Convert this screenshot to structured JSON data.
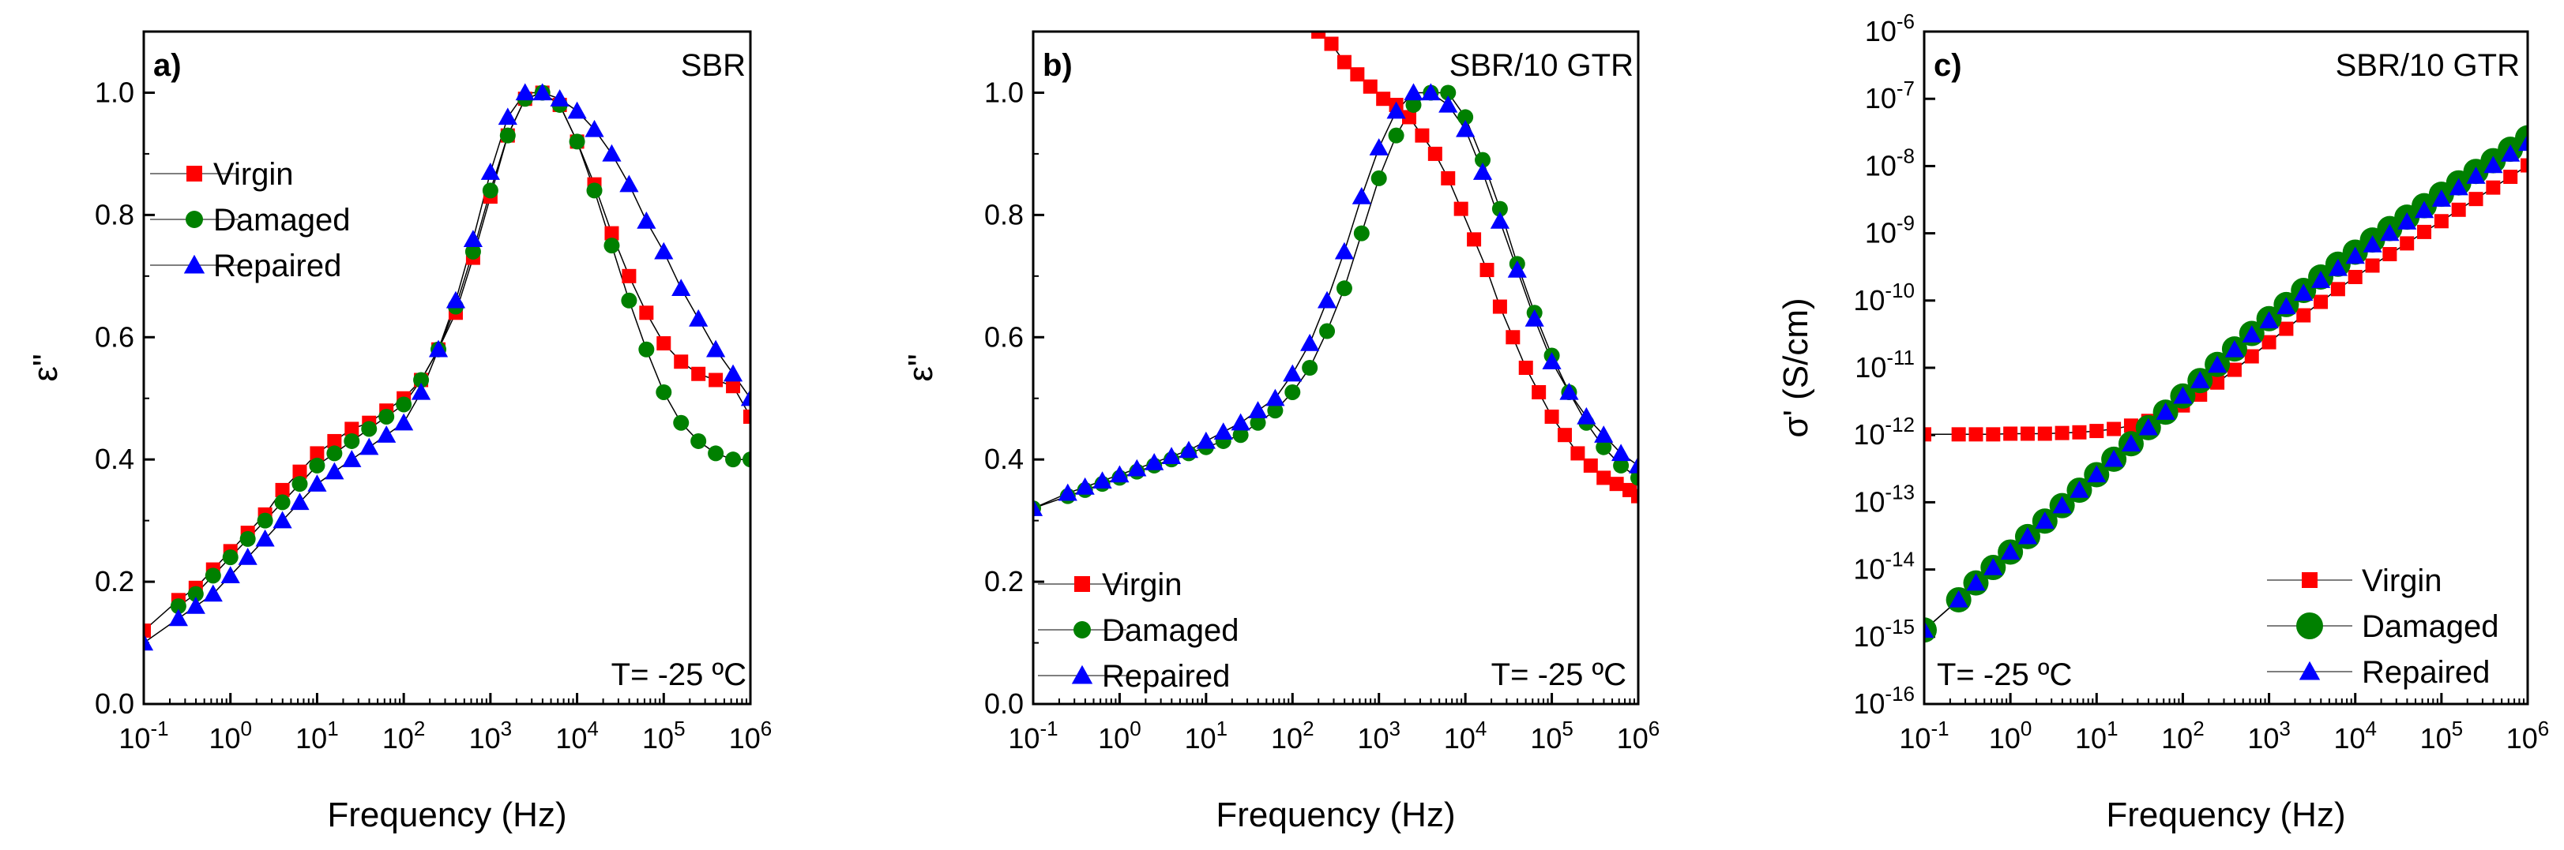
{
  "colors": {
    "virgin": "#ff0000",
    "damaged": "#008000",
    "repaired": "#0000ff",
    "line": "#000000"
  },
  "chart_data": [
    {
      "type": "scatter",
      "panel_label": "a)",
      "sample": "SBR",
      "annotation": "T= -25 ºC",
      "xlabel": "Frequency (Hz)",
      "ylabel": "ε\"",
      "xscale": "log",
      "xlim": [
        0.1,
        1000000
      ],
      "ylim": [
        0.0,
        1.1
      ],
      "xticks": [
        {
          "base": "10",
          "exp": "-1"
        },
        {
          "base": "10",
          "exp": "0"
        },
        {
          "base": "10",
          "exp": "1"
        },
        {
          "base": "10",
          "exp": "2"
        },
        {
          "base": "10",
          "exp": "3"
        },
        {
          "base": "10",
          "exp": "4"
        },
        {
          "base": "10",
          "exp": "5"
        },
        {
          "base": "10",
          "exp": "6"
        }
      ],
      "yticks": [
        "0.0",
        "0.2",
        "0.4",
        "0.6",
        "0.8",
        "1.0"
      ],
      "legend": [
        "Virgin",
        "Damaged",
        "Repaired"
      ],
      "series": [
        {
          "name": "Virgin",
          "logx": [
            -1.0,
            -0.6,
            -0.4,
            -0.2,
            0.0,
            0.2,
            0.4,
            0.6,
            0.8,
            1.0,
            1.2,
            1.4,
            1.6,
            1.8,
            2.0,
            2.2,
            2.4,
            2.6,
            2.8,
            3.0,
            3.2,
            3.4,
            3.6,
            3.8,
            4.0,
            4.2,
            4.4,
            4.6,
            4.8,
            5.0,
            5.2,
            5.4,
            5.6,
            5.8,
            6.0
          ],
          "y": [
            0.12,
            0.17,
            0.19,
            0.22,
            0.25,
            0.28,
            0.31,
            0.35,
            0.38,
            0.41,
            0.43,
            0.45,
            0.46,
            0.48,
            0.5,
            0.53,
            0.58,
            0.64,
            0.73,
            0.83,
            0.93,
            0.99,
            1.0,
            0.98,
            0.92,
            0.85,
            0.77,
            0.7,
            0.64,
            0.59,
            0.56,
            0.54,
            0.53,
            0.52,
            0.47
          ]
        },
        {
          "name": "Damaged",
          "logx": [
            -0.6,
            -0.4,
            -0.2,
            0.0,
            0.2,
            0.4,
            0.6,
            0.8,
            1.0,
            1.2,
            1.4,
            1.6,
            1.8,
            2.0,
            2.2,
            2.4,
            2.6,
            2.8,
            3.0,
            3.2,
            3.4,
            3.6,
            3.8,
            4.0,
            4.2,
            4.4,
            4.6,
            4.8,
            5.0,
            5.2,
            5.4,
            5.6,
            5.8,
            6.0
          ],
          "y": [
            0.16,
            0.18,
            0.21,
            0.24,
            0.27,
            0.3,
            0.33,
            0.36,
            0.39,
            0.41,
            0.43,
            0.45,
            0.47,
            0.49,
            0.53,
            0.58,
            0.65,
            0.74,
            0.84,
            0.93,
            0.99,
            1.0,
            0.98,
            0.92,
            0.84,
            0.75,
            0.66,
            0.58,
            0.51,
            0.46,
            0.43,
            0.41,
            0.4,
            0.4
          ]
        },
        {
          "name": "Repaired",
          "logx": [
            -1.0,
            -0.6,
            -0.4,
            -0.2,
            0.0,
            0.2,
            0.4,
            0.6,
            0.8,
            1.0,
            1.2,
            1.4,
            1.6,
            1.8,
            2.0,
            2.2,
            2.4,
            2.6,
            2.8,
            3.0,
            3.2,
            3.4,
            3.6,
            3.8,
            4.0,
            4.2,
            4.4,
            4.6,
            4.8,
            5.0,
            5.2,
            5.4,
            5.6,
            5.8,
            6.0
          ],
          "y": [
            0.1,
            0.14,
            0.16,
            0.18,
            0.21,
            0.24,
            0.27,
            0.3,
            0.33,
            0.36,
            0.38,
            0.4,
            0.42,
            0.44,
            0.46,
            0.51,
            0.58,
            0.66,
            0.76,
            0.87,
            0.96,
            1.0,
            1.0,
            0.99,
            0.97,
            0.94,
            0.9,
            0.85,
            0.79,
            0.74,
            0.68,
            0.63,
            0.58,
            0.54,
            0.5
          ]
        }
      ]
    },
    {
      "type": "scatter",
      "panel_label": "b)",
      "sample": "SBR/10 GTR",
      "annotation": "T= -25 ºC",
      "xlabel": "Frequency (Hz)",
      "ylabel": "ε\"",
      "xscale": "log",
      "xlim": [
        0.1,
        1000000
      ],
      "ylim": [
        0.0,
        1.1
      ],
      "xticks": [
        {
          "base": "10",
          "exp": "-1"
        },
        {
          "base": "10",
          "exp": "0"
        },
        {
          "base": "10",
          "exp": "1"
        },
        {
          "base": "10",
          "exp": "2"
        },
        {
          "base": "10",
          "exp": "3"
        },
        {
          "base": "10",
          "exp": "4"
        },
        {
          "base": "10",
          "exp": "5"
        },
        {
          "base": "10",
          "exp": "6"
        }
      ],
      "yticks": [
        "0.0",
        "0.2",
        "0.4",
        "0.6",
        "0.8",
        "1.0"
      ],
      "legend": [
        "Virgin",
        "Damaged",
        "Repaired"
      ],
      "series": [
        {
          "name": "Virgin",
          "logx": [
            2.3,
            2.45,
            2.6,
            2.75,
            2.9,
            3.05,
            3.2,
            3.35,
            3.5,
            3.65,
            3.8,
            3.95,
            4.1,
            4.25,
            4.4,
            4.55,
            4.7,
            4.85,
            5.0,
            5.15,
            5.3,
            5.45,
            5.6,
            5.75,
            5.9,
            6.0
          ],
          "y": [
            1.1,
            1.08,
            1.05,
            1.03,
            1.01,
            0.99,
            0.98,
            0.96,
            0.93,
            0.9,
            0.86,
            0.81,
            0.76,
            0.71,
            0.65,
            0.6,
            0.55,
            0.51,
            0.47,
            0.44,
            0.41,
            0.39,
            0.37,
            0.36,
            0.35,
            0.34
          ]
        },
        {
          "name": "Damaged",
          "logx": [
            -1.0,
            -0.6,
            -0.4,
            -0.2,
            0.0,
            0.2,
            0.4,
            0.6,
            0.8,
            1.0,
            1.2,
            1.4,
            1.6,
            1.8,
            2.0,
            2.2,
            2.4,
            2.6,
            2.8,
            3.0,
            3.2,
            3.4,
            3.6,
            3.8,
            4.0,
            4.2,
            4.4,
            4.6,
            4.8,
            5.0,
            5.2,
            5.4,
            5.6,
            5.8,
            6.0
          ],
          "y": [
            0.32,
            0.34,
            0.35,
            0.36,
            0.37,
            0.38,
            0.39,
            0.4,
            0.41,
            0.42,
            0.43,
            0.44,
            0.46,
            0.48,
            0.51,
            0.55,
            0.61,
            0.68,
            0.77,
            0.86,
            0.93,
            0.98,
            1.0,
            1.0,
            0.96,
            0.89,
            0.81,
            0.72,
            0.64,
            0.57,
            0.51,
            0.46,
            0.42,
            0.39,
            0.37
          ]
        },
        {
          "name": "Repaired",
          "logx": [
            -1.0,
            -0.6,
            -0.4,
            -0.2,
            0.0,
            0.2,
            0.4,
            0.6,
            0.8,
            1.0,
            1.2,
            1.4,
            1.6,
            1.8,
            2.0,
            2.2,
            2.4,
            2.6,
            2.8,
            3.0,
            3.2,
            3.4,
            3.6,
            3.8,
            4.0,
            4.2,
            4.4,
            4.6,
            4.8,
            5.0,
            5.2,
            5.4,
            5.6,
            5.8,
            6.0
          ],
          "y": [
            0.32,
            0.345,
            0.355,
            0.365,
            0.375,
            0.385,
            0.395,
            0.405,
            0.415,
            0.43,
            0.445,
            0.46,
            0.48,
            0.5,
            0.54,
            0.59,
            0.66,
            0.74,
            0.83,
            0.91,
            0.97,
            1.0,
            1.0,
            0.98,
            0.94,
            0.87,
            0.79,
            0.71,
            0.63,
            0.56,
            0.51,
            0.47,
            0.44,
            0.41,
            0.39
          ]
        }
      ]
    },
    {
      "type": "scatter",
      "panel_label": "c)",
      "sample": "SBR/10 GTR",
      "annotation": "T= -25 ºC",
      "xlabel": "Frequency (Hz)",
      "ylabel": "σ' (S/cm)",
      "xscale": "log",
      "yscale": "log",
      "xlim": [
        0.1,
        1000000
      ],
      "ylim": [
        1e-16,
        1e-06
      ],
      "xticks": [
        {
          "base": "10",
          "exp": "-1"
        },
        {
          "base": "10",
          "exp": "0"
        },
        {
          "base": "10",
          "exp": "1"
        },
        {
          "base": "10",
          "exp": "2"
        },
        {
          "base": "10",
          "exp": "3"
        },
        {
          "base": "10",
          "exp": "4"
        },
        {
          "base": "10",
          "exp": "5"
        },
        {
          "base": "10",
          "exp": "6"
        }
      ],
      "yticks": [
        {
          "base": "10",
          "exp": "-16"
        },
        {
          "base": "10",
          "exp": "-15"
        },
        {
          "base": "10",
          "exp": "-14"
        },
        {
          "base": "10",
          "exp": "-13"
        },
        {
          "base": "10",
          "exp": "-12"
        },
        {
          "base": "10",
          "exp": "-11"
        },
        {
          "base": "10",
          "exp": "-10"
        },
        {
          "base": "10",
          "exp": "-9"
        },
        {
          "base": "10",
          "exp": "-8"
        },
        {
          "base": "10",
          "exp": "-7"
        },
        {
          "base": "10",
          "exp": "-6"
        }
      ],
      "legend": [
        "Virgin",
        "Damaged",
        "Repaired"
      ],
      "series": [
        {
          "name": "Virgin",
          "logx": [
            -1.0,
            -0.6,
            -0.4,
            -0.2,
            0.0,
            0.2,
            0.4,
            0.6,
            0.8,
            1.0,
            1.2,
            1.4,
            1.6,
            1.8,
            2.0,
            2.2,
            2.4,
            2.6,
            2.8,
            3.0,
            3.2,
            3.4,
            3.6,
            3.8,
            4.0,
            4.2,
            4.4,
            4.6,
            4.8,
            5.0,
            5.2,
            5.4,
            5.6,
            5.8,
            6.0
          ],
          "logy": [
            -11.99,
            -11.99,
            -11.99,
            -11.99,
            -11.98,
            -11.98,
            -11.98,
            -11.97,
            -11.96,
            -11.94,
            -11.91,
            -11.86,
            -11.79,
            -11.69,
            -11.56,
            -11.4,
            -11.22,
            -11.03,
            -10.83,
            -10.62,
            -10.42,
            -10.22,
            -10.02,
            -9.83,
            -9.65,
            -9.48,
            -9.31,
            -9.15,
            -8.98,
            -8.82,
            -8.65,
            -8.49,
            -8.32,
            -8.16,
            -7.99
          ]
        },
        {
          "name": "Damaged",
          "logx": [
            -1.0,
            -0.6,
            -0.4,
            -0.2,
            0.0,
            0.2,
            0.4,
            0.6,
            0.8,
            1.0,
            1.2,
            1.4,
            1.6,
            1.8,
            2.0,
            2.2,
            2.4,
            2.6,
            2.8,
            3.0,
            3.2,
            3.4,
            3.6,
            3.8,
            4.0,
            4.2,
            4.4,
            4.6,
            4.8,
            5.0,
            5.2,
            5.4,
            5.6,
            5.8,
            6.0
          ],
          "logy": [
            -14.9,
            -14.45,
            -14.2,
            -13.97,
            -13.74,
            -13.51,
            -13.28,
            -13.05,
            -12.82,
            -12.59,
            -12.36,
            -12.13,
            -11.89,
            -11.66,
            -11.42,
            -11.19,
            -10.95,
            -10.72,
            -10.49,
            -10.27,
            -10.06,
            -9.85,
            -9.65,
            -9.46,
            -9.28,
            -9.1,
            -8.93,
            -8.76,
            -8.59,
            -8.42,
            -8.25,
            -8.08,
            -7.92,
            -7.75,
            -7.58
          ]
        },
        {
          "name": "Repaired",
          "logx": [
            -1.0,
            -0.6,
            -0.4,
            -0.2,
            0.0,
            0.2,
            0.4,
            0.6,
            0.8,
            1.0,
            1.2,
            1.4,
            1.6,
            1.8,
            2.0,
            2.2,
            2.4,
            2.6,
            2.8,
            3.0,
            3.2,
            3.4,
            3.6,
            3.8,
            4.0,
            4.2,
            4.4,
            4.6,
            4.8,
            5.0,
            5.2,
            5.4,
            5.6,
            5.8,
            6.0
          ],
          "logy": [
            -14.9,
            -14.45,
            -14.2,
            -13.97,
            -13.74,
            -13.51,
            -13.28,
            -13.05,
            -12.82,
            -12.59,
            -12.36,
            -12.13,
            -11.89,
            -11.66,
            -11.42,
            -11.19,
            -10.96,
            -10.73,
            -10.51,
            -10.3,
            -10.09,
            -9.89,
            -9.7,
            -9.52,
            -9.34,
            -9.17,
            -9.0,
            -8.83,
            -8.66,
            -8.49,
            -8.32,
            -8.15,
            -7.99,
            -7.82,
            -7.66
          ]
        }
      ]
    }
  ]
}
